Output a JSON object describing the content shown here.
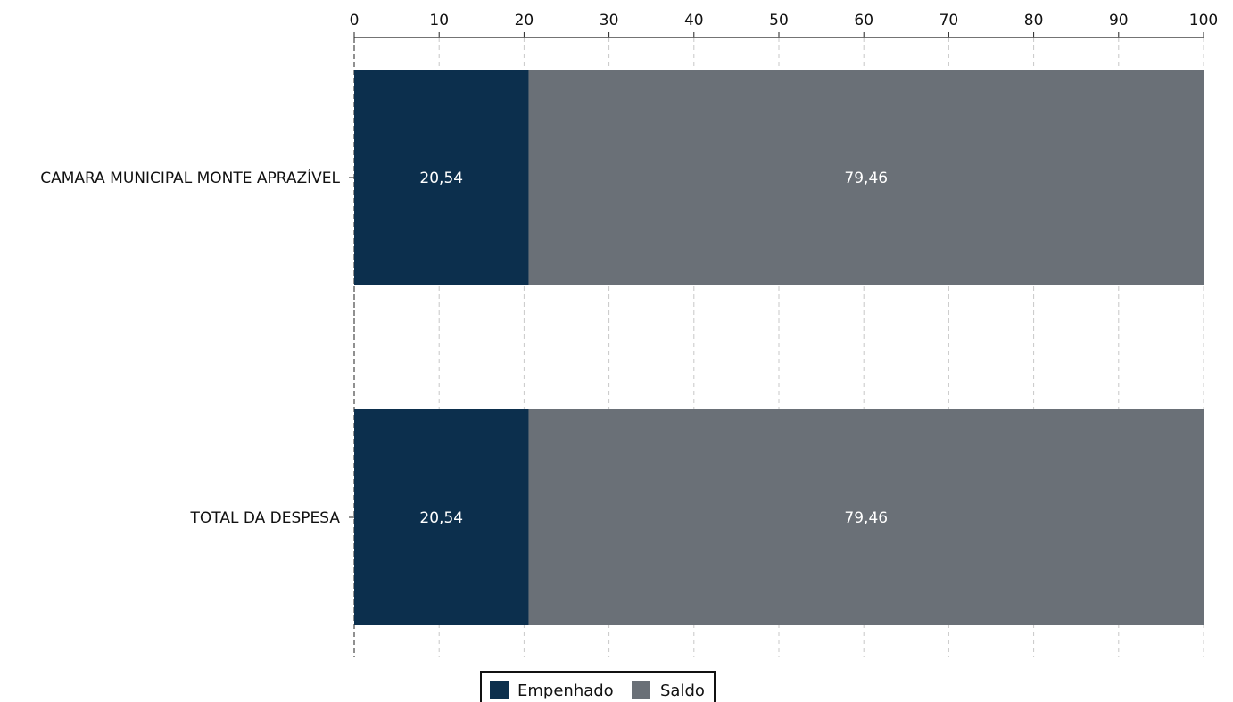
{
  "chart_data": {
    "type": "bar",
    "orientation": "horizontal",
    "stacked": true,
    "categories": [
      "CAMARA MUNICIPAL MONTE APRAZÍVEL",
      "TOTAL DA DESPESA"
    ],
    "series": [
      {
        "name": "Empenhado",
        "values": [
          20.54,
          20.54
        ],
        "labels": [
          "20,54",
          "20,54"
        ],
        "color": "#0c2f4d"
      },
      {
        "name": "Saldo",
        "values": [
          79.46,
          79.46
        ],
        "labels": [
          "79,46",
          "79,46"
        ],
        "color": "#6a7077"
      }
    ],
    "xlim": [
      0,
      100
    ],
    "x_ticks": [
      "0",
      "10",
      "20",
      "30",
      "40",
      "50",
      "60",
      "70",
      "80",
      "90",
      "100"
    ],
    "x_axis_position": "top",
    "grid": true,
    "legend_position": "bottom-center"
  }
}
